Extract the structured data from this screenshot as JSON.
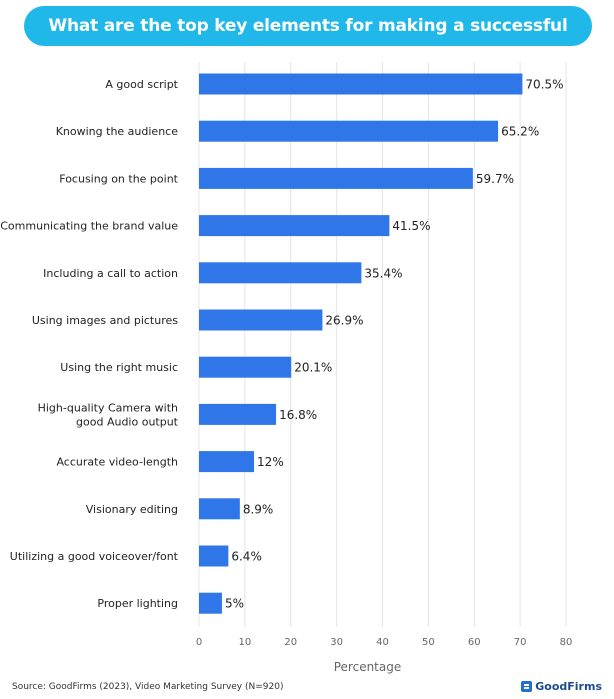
{
  "chart_data": {
    "type": "bar",
    "orientation": "horizontal",
    "title": "What are the top key elements for making a successful video?",
    "categories": [
      [
        "A good script"
      ],
      [
        "Knowing the audience"
      ],
      [
        "Focusing on the point"
      ],
      [
        "Communicating the brand value"
      ],
      [
        "Including a call to action"
      ],
      [
        "Using images and pictures"
      ],
      [
        "Using the right music"
      ],
      [
        "High-quality Camera with",
        "good Audio output"
      ],
      [
        "Accurate video-length"
      ],
      [
        "Visionary editing"
      ],
      [
        "Utilizing a good voiceover/font"
      ],
      [
        "Proper lighting"
      ]
    ],
    "values": [
      70.5,
      65.2,
      59.7,
      41.5,
      35.4,
      26.9,
      20.1,
      16.8,
      12,
      8.9,
      6.4,
      5
    ],
    "value_labels": [
      "70.5%",
      "65.2%",
      "59.7%",
      "41.5%",
      "35.4%",
      "26.9%",
      "20.1%",
      "16.8%",
      "12%",
      "8.9%",
      "6.4%",
      "5%"
    ],
    "xlabel": "Percentage",
    "ylabel": "",
    "xlim": [
      0,
      80
    ],
    "xticks": [
      0,
      10,
      20,
      30,
      40,
      50,
      60,
      70,
      80
    ],
    "grid": true,
    "bar_color": "#2f76e8",
    "grid_color": "#e4e4e4"
  },
  "footer": {
    "source": "Source: GoodFirms (2023), Video Marketing Survey (N=920)",
    "brand": "GoodFirms"
  },
  "colors": {
    "title_bg": "#1fb8e8",
    "brand": "#1e4b8f"
  }
}
